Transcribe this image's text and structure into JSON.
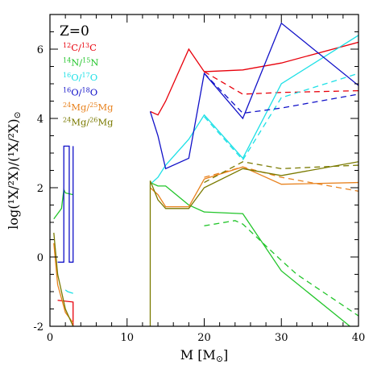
{
  "chart_data": {
    "type": "line",
    "panel_label": "Z=0",
    "xlabel": "M  [M",
    "xlabel_sub": "⊙",
    "xlabel_close": "]",
    "ylabel": "log(¹X/²X)/(¹X/²X)",
    "ylabel_sub": "⊙",
    "xlim": [
      0,
      40
    ],
    "ylim": [
      -2,
      7
    ],
    "xticks": [
      0,
      10,
      20,
      30,
      40
    ],
    "yticks": [
      -2,
      0,
      2,
      4,
      6
    ],
    "legend": [
      {
        "m1": "12",
        "e1": "C",
        "m2": "13",
        "e2": "C",
        "color": "#e8000b"
      },
      {
        "m1": "14",
        "e1": "N",
        "m2": "15",
        "e2": "N",
        "color": "#22c52a"
      },
      {
        "m1": "16",
        "e1": "O",
        "m2": "17",
        "e2": "O",
        "color": "#1ee0e6"
      },
      {
        "m1": "16",
        "e1": "O",
        "m2": "18",
        "e2": "O",
        "color": "#1010c8"
      },
      {
        "m1": "24",
        "e1": "Mg",
        "m2": "25",
        "e2": "Mg",
        "color": "#e8821e"
      },
      {
        "m1": "24",
        "e1": "Mg",
        "m2": "26",
        "e2": "Mg",
        "color": "#7a7a00"
      }
    ],
    "series": [
      {
        "color": "#e8000b",
        "dash": false,
        "points": [
          [
            1.0,
            -1.25
          ],
          [
            3.0,
            -1.3
          ],
          [
            3.0,
            -2.2
          ]
        ]
      },
      {
        "color": "#e8000b",
        "dash": false,
        "points": [
          [
            13.0,
            4.2
          ],
          [
            14.0,
            4.1
          ],
          [
            15.0,
            4.5
          ],
          [
            18.0,
            6.0
          ],
          [
            20.0,
            5.35
          ],
          [
            25.0,
            5.4
          ],
          [
            30.0,
            5.6
          ],
          [
            40.0,
            6.2
          ]
        ]
      },
      {
        "color": "#e8000b",
        "dash": true,
        "points": [
          [
            20.0,
            5.35
          ],
          [
            25.0,
            4.7
          ],
          [
            30.0,
            4.75
          ],
          [
            40.0,
            4.8
          ]
        ]
      },
      {
        "color": "#22c52a",
        "dash": false,
        "points": [
          [
            0.5,
            1.1
          ],
          [
            1.5,
            1.4
          ],
          [
            1.8,
            1.95
          ],
          [
            2.0,
            1.85
          ],
          [
            3.0,
            1.8
          ]
        ]
      },
      {
        "color": "#22c52a",
        "dash": false,
        "points": [
          [
            13.0,
            2.15
          ],
          [
            14.0,
            2.05
          ],
          [
            15.0,
            2.05
          ],
          [
            18.0,
            1.5
          ],
          [
            20.0,
            1.3
          ],
          [
            25.0,
            1.25
          ],
          [
            30.0,
            -0.4
          ],
          [
            40.0,
            -2.2
          ]
        ]
      },
      {
        "color": "#22c52a",
        "dash": true,
        "points": [
          [
            20.0,
            0.9
          ],
          [
            24.0,
            1.05
          ],
          [
            25.0,
            0.95
          ],
          [
            30.0,
            -0.1
          ],
          [
            32.0,
            -0.5
          ],
          [
            40.0,
            -1.7
          ]
        ]
      },
      {
        "color": "#1ee0e6",
        "dash": false,
        "points": [
          [
            2.0,
            -0.95
          ],
          [
            2.3,
            -1.0
          ],
          [
            3.0,
            -1.05
          ]
        ]
      },
      {
        "color": "#1ee0e6",
        "dash": false,
        "points": [
          [
            13.0,
            2.1
          ],
          [
            14.0,
            2.3
          ],
          [
            15.0,
            2.65
          ],
          [
            18.0,
            3.4
          ],
          [
            20.0,
            4.1
          ],
          [
            25.0,
            2.85
          ],
          [
            30.0,
            5.0
          ],
          [
            40.0,
            6.4
          ]
        ]
      },
      {
        "color": "#1ee0e6",
        "dash": true,
        "points": [
          [
            20.0,
            4.05
          ],
          [
            25.0,
            2.8
          ],
          [
            30.0,
            4.6
          ],
          [
            40.0,
            5.3
          ]
        ]
      },
      {
        "color": "#1010c8",
        "dash": false,
        "points": [
          [
            1.0,
            -0.15
          ],
          [
            1.8,
            -0.15
          ],
          [
            1.8,
            3.2
          ],
          [
            2.5,
            3.2
          ],
          [
            2.5,
            -0.15
          ],
          [
            3.0,
            -0.15
          ],
          [
            3.0,
            3.2
          ]
        ]
      },
      {
        "color": "#1010c8",
        "dash": false,
        "points": [
          [
            13.0,
            4.2
          ],
          [
            14.0,
            3.5
          ],
          [
            15.0,
            2.55
          ],
          [
            18.0,
            2.85
          ],
          [
            20.0,
            5.3
          ],
          [
            25.0,
            4.0
          ],
          [
            30.0,
            6.75
          ],
          [
            40.0,
            4.95
          ]
        ]
      },
      {
        "color": "#1010c8",
        "dash": true,
        "points": [
          [
            20.0,
            5.3
          ],
          [
            25.0,
            4.15
          ],
          [
            30.0,
            4.3
          ],
          [
            40.0,
            4.7
          ]
        ]
      },
      {
        "color": "#e8821e",
        "dash": false,
        "points": [
          [
            0.5,
            0.4
          ],
          [
            1.0,
            -0.8
          ],
          [
            2.0,
            -1.6
          ],
          [
            3.0,
            -1.9
          ]
        ]
      },
      {
        "color": "#e8821e",
        "dash": false,
        "points": [
          [
            13.0,
            2.0
          ],
          [
            14.0,
            1.8
          ],
          [
            15.0,
            1.45
          ],
          [
            18.0,
            1.45
          ],
          [
            20.0,
            2.25
          ],
          [
            25.0,
            2.6
          ],
          [
            30.0,
            2.1
          ],
          [
            40.0,
            2.15
          ]
        ]
      },
      {
        "color": "#e8821e",
        "dash": true,
        "points": [
          [
            20.0,
            2.3
          ],
          [
            25.0,
            2.6
          ],
          [
            30.0,
            2.3
          ],
          [
            40.0,
            1.9
          ]
        ]
      },
      {
        "color": "#7a7a00",
        "dash": false,
        "points": [
          [
            0.5,
            0.7
          ],
          [
            1.0,
            -0.5
          ],
          [
            2.0,
            -1.5
          ],
          [
            3.0,
            -2.0
          ]
        ]
      },
      {
        "color": "#7a7a00",
        "dash": false,
        "points": [
          [
            13.0,
            -2.2
          ],
          [
            13.0,
            2.2
          ],
          [
            14.0,
            1.65
          ],
          [
            15.0,
            1.4
          ],
          [
            18.0,
            1.4
          ],
          [
            20.0,
            2.0
          ],
          [
            25.0,
            2.55
          ],
          [
            30.0,
            2.35
          ],
          [
            40.0,
            2.75
          ]
        ]
      },
      {
        "color": "#7a7a00",
        "dash": true,
        "points": [
          [
            20.0,
            2.15
          ],
          [
            25.0,
            2.75
          ],
          [
            30.0,
            2.55
          ],
          [
            40.0,
            2.65
          ]
        ]
      }
    ]
  }
}
